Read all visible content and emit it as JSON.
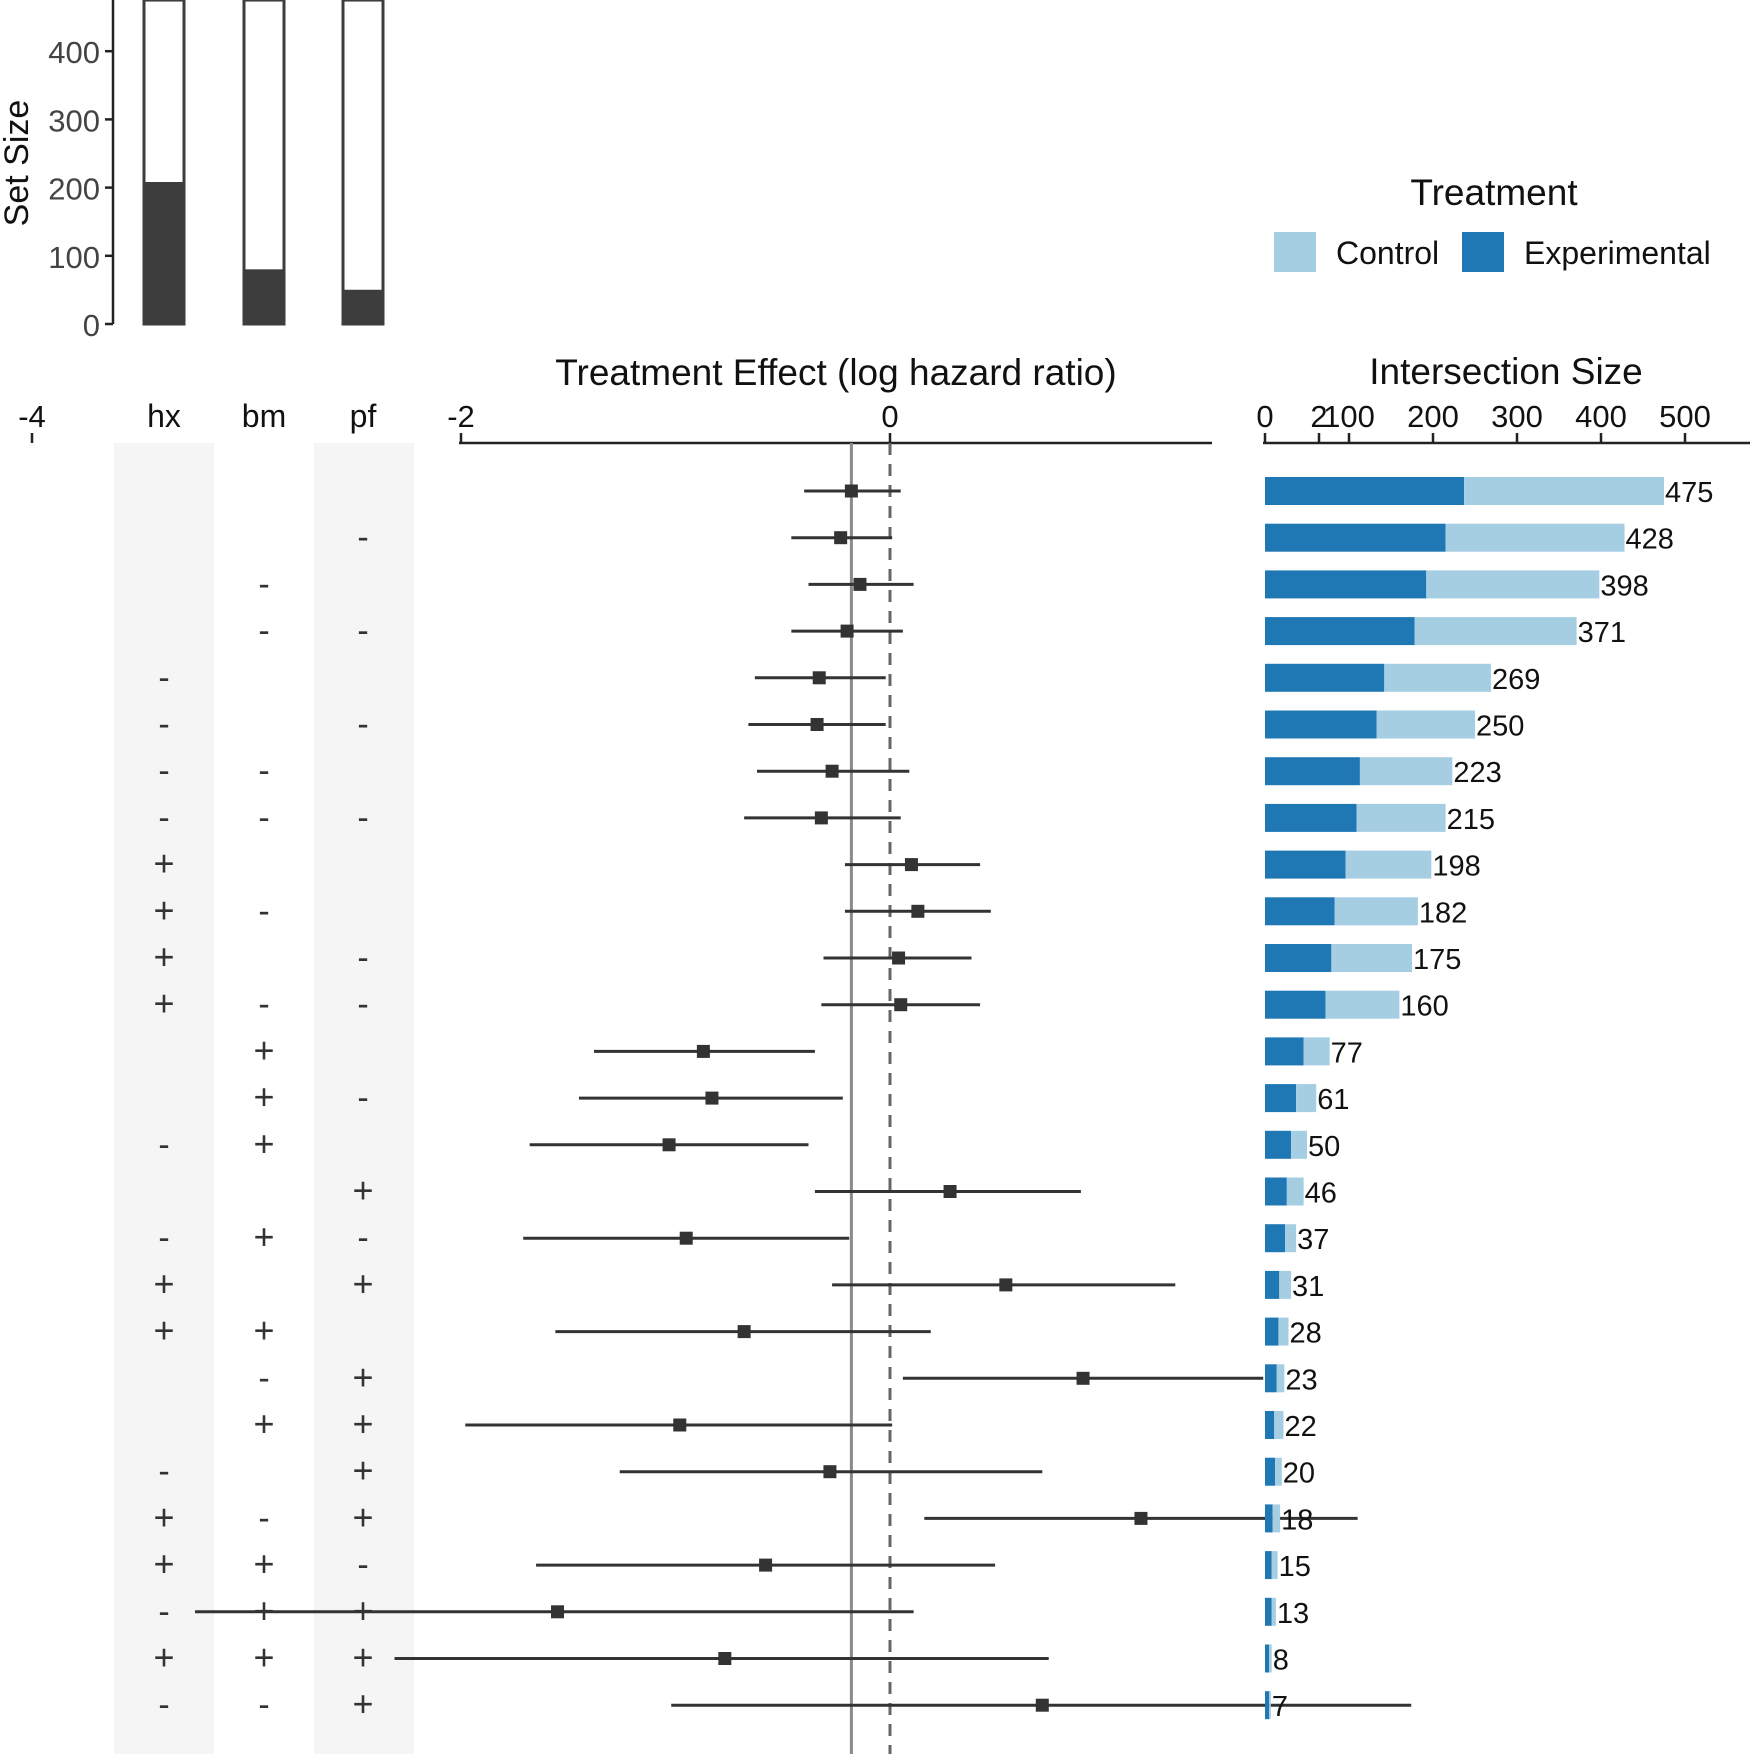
{
  "chart_data": [
    {
      "type": "bar",
      "ylabel": "Set Size",
      "ylim": [
        0,
        475
      ],
      "yticks": [
        0,
        100,
        200,
        300,
        400
      ],
      "categories": [
        "hx",
        "bm",
        "pf"
      ],
      "series": [
        {
          "values": [
            206,
            78,
            48
          ]
        },
        {
          "values": [
            475,
            475,
            475
          ]
        }
      ]
    },
    {
      "type": "scatter",
      "xlabel": "Treatment Effect (log hazard ratio)",
      "xticks": [
        "-4",
        "-2",
        "0",
        "2"
      ],
      "xlim": [
        -4,
        3
      ],
      "reference_solid": -0.18,
      "reference_dashed": 0,
      "points": [
        {
          "est": -0.18,
          "lo": -0.4,
          "hi": 0.05
        },
        {
          "est": -0.23,
          "lo": -0.46,
          "hi": 0.01
        },
        {
          "est": -0.14,
          "lo": -0.38,
          "hi": 0.11
        },
        {
          "est": -0.2,
          "lo": -0.46,
          "hi": 0.06
        },
        {
          "est": -0.33,
          "lo": -0.63,
          "hi": -0.02
        },
        {
          "est": -0.34,
          "lo": -0.66,
          "hi": -0.02
        },
        {
          "est": -0.27,
          "lo": -0.62,
          "hi": 0.09
        },
        {
          "est": -0.32,
          "lo": -0.68,
          "hi": 0.05
        },
        {
          "est": 0.1,
          "lo": -0.21,
          "hi": 0.42
        },
        {
          "est": 0.13,
          "lo": -0.21,
          "hi": 0.47
        },
        {
          "est": 0.04,
          "lo": -0.31,
          "hi": 0.38
        },
        {
          "est": 0.05,
          "lo": -0.32,
          "hi": 0.42
        },
        {
          "est": -0.87,
          "lo": -1.38,
          "hi": -0.35
        },
        {
          "est": -0.83,
          "lo": -1.45,
          "hi": -0.22
        },
        {
          "est": -1.03,
          "lo": -1.68,
          "hi": -0.38
        },
        {
          "est": 0.28,
          "lo": -0.35,
          "hi": 0.89
        },
        {
          "est": -0.95,
          "lo": -1.71,
          "hi": -0.19
        },
        {
          "est": 0.54,
          "lo": -0.27,
          "hi": 1.33
        },
        {
          "est": -0.68,
          "lo": -1.56,
          "hi": 0.19
        },
        {
          "est": 0.9,
          "lo": 0.06,
          "hi": 1.74
        },
        {
          "est": -0.98,
          "lo": -1.98,
          "hi": 0.01
        },
        {
          "est": -0.28,
          "lo": -1.26,
          "hi": 0.71
        },
        {
          "est": 1.17,
          "lo": 0.16,
          "hi": 2.18
        },
        {
          "est": -0.58,
          "lo": -1.65,
          "hi": 0.49
        },
        {
          "est": -1.55,
          "lo": -3.24,
          "hi": 0.11
        },
        {
          "est": -0.77,
          "lo": -2.31,
          "hi": 0.74
        },
        {
          "est": 0.71,
          "lo": -1.02,
          "hi": 2.43
        }
      ]
    },
    {
      "type": "bar",
      "title": "Intersection Size",
      "xticks": [
        0,
        100,
        200,
        300,
        400,
        500
      ],
      "xlim": [
        0,
        570
      ],
      "legend": {
        "title": "Treatment",
        "position": "top-right"
      },
      "series": [
        {
          "name": "Control",
          "color": "#a6cee3",
          "values": [
            238,
            213,
            206,
            193,
            127,
            117,
            110,
            106,
            102,
            99,
            96,
            88,
            31,
            24,
            19,
            20,
            13,
            14,
            12,
            9,
            11,
            8,
            9,
            7,
            5,
            3,
            2
          ]
        },
        {
          "name": "Experimental",
          "color": "#1f78b4",
          "values": [
            237,
            215,
            192,
            178,
            142,
            133,
            113,
            109,
            96,
            83,
            79,
            72,
            46,
            37,
            31,
            26,
            24,
            17,
            16,
            14,
            11,
            12,
            9,
            8,
            8,
            5,
            5
          ]
        }
      ],
      "labels": [
        "475",
        "428",
        "398",
        "371",
        "269",
        "250",
        "223",
        "215",
        "198",
        "182",
        "175",
        "160",
        "77",
        "61",
        "50",
        "46",
        "37",
        "31",
        "28",
        "23",
        "22",
        "20",
        "18",
        "15",
        "13",
        "8",
        "7"
      ]
    },
    {
      "type": "table",
      "columns": [
        "hx",
        "bm",
        "pf"
      ],
      "rows": [
        [
          "",
          "",
          ""
        ],
        [
          "",
          "",
          "-"
        ],
        [
          "",
          "-",
          ""
        ],
        [
          "",
          "-",
          "-"
        ],
        [
          "-",
          "",
          ""
        ],
        [
          "-",
          "",
          "-"
        ],
        [
          "-",
          "-",
          ""
        ],
        [
          "-",
          "-",
          "-"
        ],
        [
          "+",
          "",
          ""
        ],
        [
          "+",
          "-",
          ""
        ],
        [
          "+",
          "",
          "-"
        ],
        [
          "+",
          "-",
          "-"
        ],
        [
          "",
          "+",
          ""
        ],
        [
          "",
          "+",
          "-"
        ],
        [
          "-",
          "+",
          ""
        ],
        [
          "",
          "",
          "+"
        ],
        [
          "-",
          "+",
          "-"
        ],
        [
          "+",
          "",
          "+"
        ],
        [
          "+",
          "+",
          ""
        ],
        [
          "",
          "-",
          "+"
        ],
        [
          "",
          "+",
          "+"
        ],
        [
          "-",
          "",
          "+"
        ],
        [
          "+",
          "-",
          "+"
        ],
        [
          "+",
          "+",
          "-"
        ],
        [
          "-",
          "+",
          "+"
        ],
        [
          "+",
          "+",
          "+"
        ],
        [
          "-",
          "-",
          "+"
        ]
      ]
    }
  ]
}
